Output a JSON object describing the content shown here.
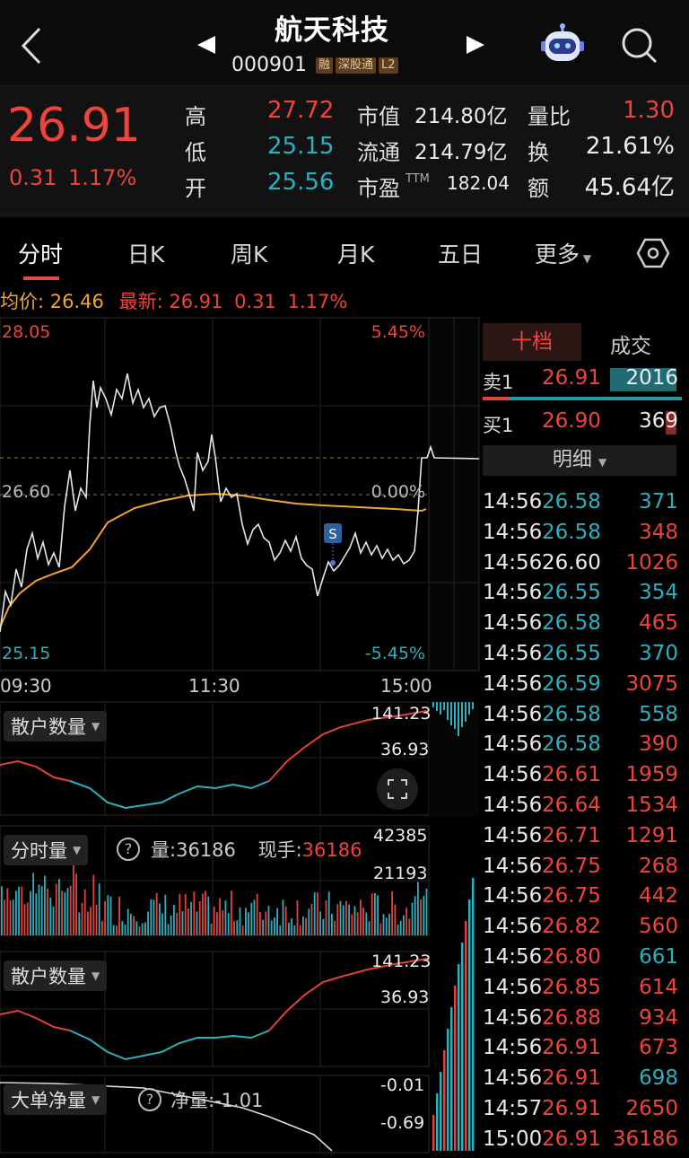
{
  "header": {
    "title": "航天科技",
    "code": "000901",
    "badges": [
      "融",
      "深股通",
      "L2"
    ]
  },
  "quote": {
    "price": "26.91",
    "change": "0.31",
    "change_pct": "1.17%",
    "high_label": "高",
    "high": "27.72",
    "low_label": "低",
    "low": "25.15",
    "open_label": "开",
    "open": "25.56",
    "mcap_label": "市值",
    "mcap": "214.80亿",
    "float_label": "流通",
    "float": "214.79亿",
    "pe_label": "市盈",
    "pe_sup": "TTM",
    "pe": "182.04",
    "vr_label": "量比",
    "vr": "1.30",
    "turn_label": "换",
    "turn": "21.61%",
    "amt_label": "额",
    "amt": "45.64亿"
  },
  "tabs": [
    "分时",
    "日K",
    "周K",
    "月K",
    "五日",
    "更多"
  ],
  "avgline": {
    "avg_label": "均价:",
    "avg": "26.46",
    "latest_label": "最新:",
    "latest": "26.91",
    "chg": "0.31",
    "pct": "1.17%"
  },
  "intraday": {
    "y_high": "28.05",
    "y_mid": "26.60",
    "y_low": "25.15",
    "pct_high": "5.45%",
    "pct_mid": "0.00%",
    "pct_low": "-5.45%",
    "x_labels": [
      "09:30",
      "11:30",
      "15:00"
    ],
    "marker": "S"
  },
  "panels": {
    "retail1": {
      "label": "散户数量",
      "top": "141.23",
      "mid": "36.93"
    },
    "volume": {
      "label": "分时量",
      "vol_label": "量:",
      "vol": "36186",
      "cur_label": "现手:",
      "cur": "36186",
      "top": "42385",
      "mid": "21193"
    },
    "retail2": {
      "label": "散户数量",
      "top": "141.23",
      "mid": "36.93"
    },
    "bignet": {
      "label": "大单净量",
      "net_label": "净量:",
      "net": "-1.01",
      "top": "-0.01",
      "mid": "-0.69"
    }
  },
  "orderbook": {
    "tab_active": "十档",
    "tab_other": "成交",
    "sell1_label": "卖1",
    "sell1_price": "26.91",
    "sell1_vol": "2016",
    "buy1_label": "买1",
    "buy1_price": "26.90",
    "buy1_vol": "369",
    "detail_label": "明细"
  },
  "trades": [
    {
      "time": "14:56",
      "price": "26.58",
      "vol": "371",
      "pc": "teal",
      "vc": "teal"
    },
    {
      "time": "14:56",
      "price": "26.58",
      "vol": "348",
      "pc": "teal",
      "vc": "red"
    },
    {
      "time": "14:56",
      "price": "26.60",
      "vol": "1026",
      "pc": "white",
      "vc": "red"
    },
    {
      "time": "14:56",
      "price": "26.55",
      "vol": "354",
      "pc": "teal",
      "vc": "teal"
    },
    {
      "time": "14:56",
      "price": "26.58",
      "vol": "465",
      "pc": "teal",
      "vc": "red"
    },
    {
      "time": "14:56",
      "price": "26.55",
      "vol": "370",
      "pc": "teal",
      "vc": "teal"
    },
    {
      "time": "14:56",
      "price": "26.59",
      "vol": "3075",
      "pc": "teal",
      "vc": "red"
    },
    {
      "time": "14:56",
      "price": "26.58",
      "vol": "558",
      "pc": "teal",
      "vc": "teal"
    },
    {
      "time": "14:56",
      "price": "26.58",
      "vol": "390",
      "pc": "teal",
      "vc": "red"
    },
    {
      "time": "14:56",
      "price": "26.61",
      "vol": "1959",
      "pc": "red",
      "vc": "red"
    },
    {
      "time": "14:56",
      "price": "26.64",
      "vol": "1534",
      "pc": "red",
      "vc": "red"
    },
    {
      "time": "14:56",
      "price": "26.71",
      "vol": "1291",
      "pc": "red",
      "vc": "red"
    },
    {
      "time": "14:56",
      "price": "26.75",
      "vol": "268",
      "pc": "red",
      "vc": "red"
    },
    {
      "time": "14:56",
      "price": "26.75",
      "vol": "442",
      "pc": "red",
      "vc": "red"
    },
    {
      "time": "14:56",
      "price": "26.82",
      "vol": "560",
      "pc": "red",
      "vc": "red"
    },
    {
      "time": "14:56",
      "price": "26.80",
      "vol": "661",
      "pc": "red",
      "vc": "teal"
    },
    {
      "time": "14:56",
      "price": "26.85",
      "vol": "614",
      "pc": "red",
      "vc": "red"
    },
    {
      "time": "14:56",
      "price": "26.88",
      "vol": "934",
      "pc": "red",
      "vc": "red"
    },
    {
      "time": "14:56",
      "price": "26.91",
      "vol": "673",
      "pc": "red",
      "vc": "red"
    },
    {
      "time": "14:56",
      "price": "26.91",
      "vol": "698",
      "pc": "red",
      "vc": "teal"
    },
    {
      "time": "14:57",
      "price": "26.91",
      "vol": "2650",
      "pc": "red",
      "vc": "red"
    },
    {
      "time": "15:00",
      "price": "26.91",
      "vol": "36186",
      "pc": "red",
      "vc": "red"
    }
  ],
  "icons": {
    "back": "back-icon",
    "prev": "prev-stock-icon",
    "next": "next-stock-icon",
    "robot": "robot-assistant-icon",
    "search": "search-icon",
    "settings": "settings-hex-icon",
    "expand": "expand-icon",
    "help": "help-icon"
  }
}
